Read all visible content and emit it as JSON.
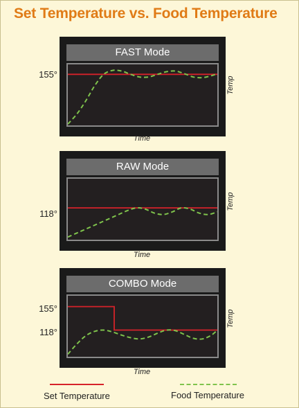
{
  "title": "Set Temperature vs. Food Temperature",
  "legend": {
    "set_label": "Set Temperature",
    "food_label": "Food Temperature",
    "set_color": "#d6222a",
    "food_color": "#7fc34c"
  },
  "chart_data": [
    {
      "type": "line",
      "title": "FAST Mode",
      "xlabel": "Time",
      "ylabel": "Temp",
      "yticks": [
        "155°"
      ],
      "set_temperature": {
        "name": "Set Temperature",
        "x": [
          0,
          1
        ],
        "y": [
          155,
          155
        ]
      },
      "food_temperature": {
        "name": "Food Temperature",
        "x": [
          0,
          0.06,
          0.12,
          0.18,
          0.24,
          0.3,
          0.36,
          0.42,
          0.48,
          0.54,
          0.6,
          0.66,
          0.72,
          0.78,
          0.84,
          0.9,
          0.96,
          1.0
        ],
        "y": [
          80,
          95,
          115,
          138,
          155,
          161,
          160,
          155,
          151,
          151,
          155,
          159,
          160,
          156,
          151,
          150,
          153,
          156
        ]
      },
      "xlim": [
        0,
        1
      ],
      "ylim": [
        78,
        170
      ],
      "grid": false
    },
    {
      "type": "line",
      "title": "RAW Mode",
      "xlabel": "Time",
      "ylabel": "Temp",
      "yticks": [
        "118°"
      ],
      "set_temperature": {
        "name": "Set Temperature",
        "x": [
          0,
          1
        ],
        "y": [
          118,
          118
        ]
      },
      "food_temperature": {
        "name": "Food Temperature",
        "x": [
          0,
          0.08,
          0.16,
          0.24,
          0.32,
          0.4,
          0.46,
          0.52,
          0.58,
          0.64,
          0.7,
          0.76,
          0.82,
          0.88,
          0.94,
          1.0
        ],
        "y": [
          96,
          100,
          104,
          108,
          112,
          116,
          118,
          117,
          114,
          113,
          115,
          118,
          117,
          114,
          113,
          115
        ]
      },
      "xlim": [
        0,
        1
      ],
      "ylim": [
        94,
        140
      ],
      "grid": false
    },
    {
      "type": "line",
      "title": "COMBO Mode",
      "xlabel": "Time",
      "ylabel": "Temp",
      "yticks": [
        "155°",
        "118°"
      ],
      "set_temperature": {
        "name": "Set Temperature",
        "x": [
          0,
          0.31,
          0.31,
          1
        ],
        "y": [
          155,
          155,
          118,
          118
        ]
      },
      "food_temperature": {
        "name": "Food Temperature",
        "x": [
          0,
          0.06,
          0.12,
          0.18,
          0.24,
          0.3,
          0.36,
          0.42,
          0.48,
          0.54,
          0.6,
          0.66,
          0.72,
          0.78,
          0.84,
          0.9,
          0.96,
          1.0
        ],
        "y": [
          80,
          96,
          109,
          116,
          118,
          115,
          110,
          106,
          104,
          107,
          113,
          118,
          117,
          111,
          105,
          104,
          110,
          118
        ]
      },
      "xlim": [
        0,
        1
      ],
      "ylim": [
        76,
        172
      ],
      "grid": false
    }
  ]
}
